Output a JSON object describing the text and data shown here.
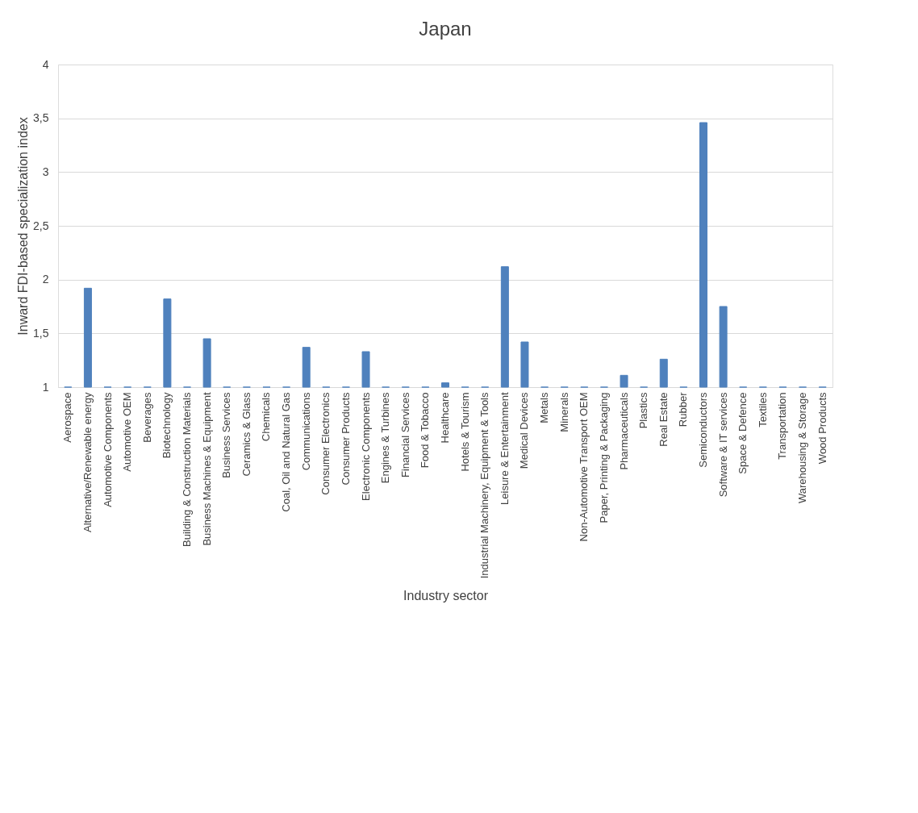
{
  "chart_data": {
    "type": "bar",
    "title": "Japan",
    "xlabel": "Industry sector",
    "ylabel": "Inward FDI-based specialization index",
    "categories": [
      "Aerospace",
      "Alternative/Renewable energy",
      "Automotive Components",
      "Automotive OEM",
      "Beverages",
      "Biotechnology",
      "Building & Construction Materials",
      "Business Machines & Equipment",
      "Business Services",
      "Ceramics & Glass",
      "Chemicals",
      "Coal, Oil and Natural Gas",
      "Communications",
      "Consumer Electronics",
      "Consumer Products",
      "Electronic Components",
      "Engines & Turbines",
      "Financial Services",
      "Food & Tobacco",
      "Healthcare",
      "Hotels & Tourism",
      "Industrial Machinery, Equipment & Tools",
      "Leisure & Entertainment",
      "Medical Devices",
      "Metals",
      "Minerals",
      "Non-Automotive Transport OEM",
      "Paper, Printing & Packaging",
      "Pharmaceuticals",
      "Plastics",
      "Real Estate",
      "Rubber",
      "Semiconductors",
      "Software & IT services",
      "Space & Defence",
      "Textiles",
      "Transportation",
      "Warehousing & Storage",
      "Wood Products"
    ],
    "values": [
      1,
      1.92,
      1,
      1,
      1,
      1.82,
      1,
      1.45,
      1,
      1,
      1,
      1,
      1.37,
      1,
      1,
      1.33,
      1,
      1,
      1,
      1.04,
      1,
      1,
      2.12,
      1.42,
      1,
      1,
      1,
      1,
      1.11,
      1,
      1.26,
      1,
      3.46,
      1.75,
      1,
      1,
      1,
      1,
      1
    ],
    "color": "#4f81bd",
    "ylim": [
      1,
      4
    ],
    "yticks": [
      1,
      {
        "value": 1.5,
        "label": "1,5"
      },
      2,
      {
        "value": 2.5,
        "label": "2,5"
      },
      3,
      {
        "value": 3.5,
        "label": "3,5"
      },
      4
    ],
    "grid": "y"
  }
}
